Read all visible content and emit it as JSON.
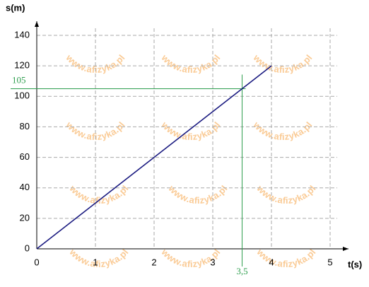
{
  "chart_data": {
    "type": "line",
    "x_label": "t(s)",
    "y_label": "s(m)",
    "watermark": "www.afizyka.pl",
    "series": [
      {
        "color": "#1a1a80",
        "x": [
          0,
          4
        ],
        "values": [
          0,
          120
        ]
      }
    ],
    "xlim": [
      0,
      5
    ],
    "ylim": [
      0,
      140
    ],
    "xticks": [
      0,
      1,
      2,
      3,
      4,
      5
    ],
    "yticks": [
      0,
      20,
      40,
      60,
      80,
      100,
      120,
      140
    ],
    "grid": true,
    "annotations": [
      {
        "x": 3.5,
        "y": 105,
        "x_label": "3,5",
        "y_label": "105",
        "color": "#2e9e4e"
      }
    ]
  }
}
